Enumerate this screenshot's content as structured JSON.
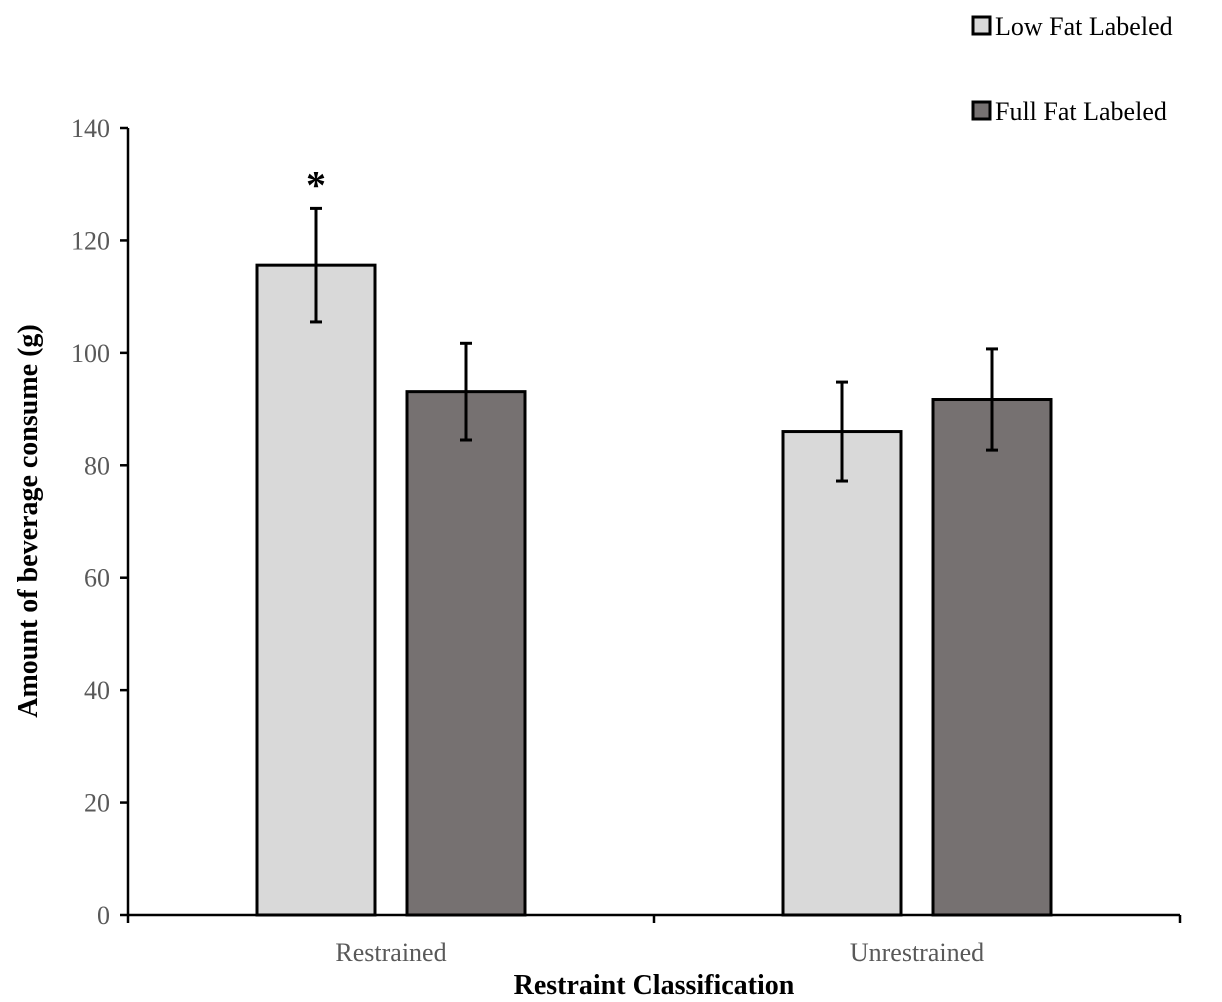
{
  "chart_data": {
    "type": "bar",
    "categories": [
      "Restrained",
      "Unrestrained"
    ],
    "series": [
      {
        "name": "Low Fat Labeled",
        "values": [
          115.6,
          86.0
        ],
        "error": [
          10.1,
          8.8
        ],
        "color": "#d9d9d9"
      },
      {
        "name": "Full Fat Labeled",
        "values": [
          93.1,
          91.7
        ],
        "error": [
          8.6,
          9.0
        ],
        "color": "#767171"
      }
    ],
    "xlabel": "Restraint Classification",
    "ylabel": "Amount of beverage consume (g)",
    "ylim": [
      0,
      140
    ],
    "yticks": [
      0,
      20,
      40,
      60,
      80,
      100,
      120,
      140
    ],
    "grid": false,
    "legend_position": "top-right",
    "annotations": [
      {
        "text": "*",
        "category": "Restrained",
        "series": "Low Fat Labeled"
      }
    ]
  }
}
